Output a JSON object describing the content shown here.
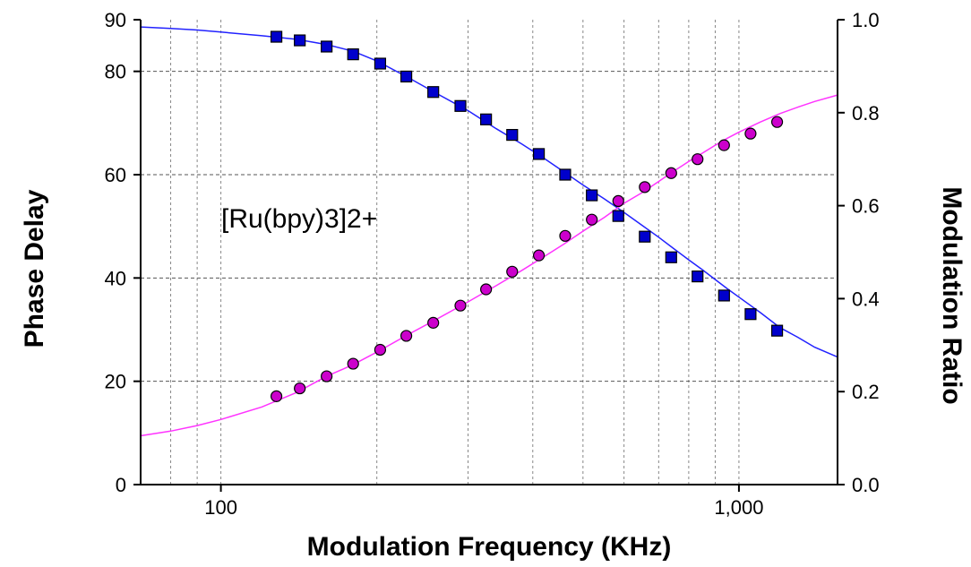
{
  "chart_data": {
    "type": "scatter",
    "xlabel": "Modulation Frequency (KHz)",
    "ylabel_left": "Phase Delay",
    "ylabel_right": "Modulation Ratio",
    "annotation": "[Ru(bpy)3]2+",
    "x_scale": "log",
    "xlim": [
      70,
      1550
    ],
    "ylim_left": [
      0,
      90
    ],
    "ylim_right": [
      0.0,
      1.0
    ],
    "x_ticks": [
      100,
      1000
    ],
    "x_tick_labels": [
      "100",
      "1,000"
    ],
    "x_minor_grid": [
      80,
      90,
      200,
      300,
      400,
      500,
      600,
      700,
      800,
      900
    ],
    "y_left_ticks": [
      0,
      20,
      40,
      60,
      80,
      90
    ],
    "y_left_tick_labels": [
      "0",
      "20",
      "40",
      "60",
      "80",
      "90"
    ],
    "y_right_ticks": [
      0.0,
      0.2,
      0.4,
      0.6,
      0.8,
      1.0
    ],
    "y_right_tick_labels": [
      "0.0",
      "0.2",
      "0.4",
      "0.6",
      "0.8",
      "1.0"
    ],
    "grid": true,
    "colors": {
      "phase": "#0000cc",
      "phase_line": "#2222ff",
      "modulation": "#cc00cc",
      "modulation_line": "#ff33ff"
    },
    "series": [
      {
        "axis": "left",
        "marker": "square",
        "x": [
          128,
          142,
          160,
          180,
          203,
          228,
          257,
          290,
          325,
          365,
          411,
          462,
          520,
          585,
          658,
          740,
          832,
          936,
          1053,
          1185
        ],
        "y": [
          86.7,
          86.0,
          84.8,
          83.3,
          81.5,
          79.0,
          76.0,
          73.3,
          70.7,
          67.7,
          64.0,
          60.0,
          56.0,
          52.0,
          48.0,
          44.0,
          40.3,
          36.6,
          33.0,
          29.8
        ]
      },
      {
        "axis": "right",
        "marker": "circle",
        "x": [
          128,
          142,
          160,
          180,
          203,
          228,
          257,
          290,
          325,
          365,
          411,
          462,
          520,
          585,
          658,
          740,
          832,
          936,
          1053,
          1185
        ],
        "y": [
          0.19,
          0.207,
          0.233,
          0.26,
          0.29,
          0.32,
          0.348,
          0.385,
          0.42,
          0.458,
          0.493,
          0.535,
          0.57,
          0.61,
          0.64,
          0.67,
          0.7,
          0.73,
          0.755,
          0.78
        ]
      }
    ],
    "fit_curves": [
      {
        "axis": "left",
        "x": [
          70,
          80,
          90,
          100,
          120,
          140,
          160,
          180,
          200,
          230,
          260,
          300,
          340,
          380,
          420,
          460,
          500,
          550,
          600,
          650,
          700,
          750,
          800,
          850,
          900,
          950,
          1000,
          1100,
          1200,
          1300,
          1400,
          1550
        ],
        "y": [
          88.6,
          88.3,
          88.0,
          87.6,
          86.9,
          86.2,
          85.2,
          83.9,
          82.0,
          78.8,
          75.8,
          72.4,
          68.9,
          66.0,
          63.2,
          60.5,
          58.0,
          55.3,
          52.7,
          50.2,
          47.9,
          45.6,
          43.5,
          41.6,
          39.7,
          37.9,
          36.3,
          33.3,
          30.4,
          28.5,
          26.6,
          24.7
        ]
      },
      {
        "axis": "right",
        "x": [
          70,
          80,
          90,
          100,
          120,
          140,
          160,
          180,
          200,
          230,
          260,
          300,
          340,
          380,
          420,
          460,
          500,
          550,
          600,
          650,
          700,
          750,
          800,
          850,
          900,
          950,
          1000,
          1100,
          1200,
          1300,
          1400,
          1550
        ],
        "y": [
          0.105,
          0.115,
          0.127,
          0.14,
          0.167,
          0.198,
          0.233,
          0.258,
          0.285,
          0.323,
          0.355,
          0.393,
          0.428,
          0.46,
          0.49,
          0.518,
          0.545,
          0.575,
          0.605,
          0.628,
          0.652,
          0.675,
          0.695,
          0.713,
          0.73,
          0.745,
          0.758,
          0.78,
          0.798,
          0.812,
          0.824,
          0.838
        ]
      }
    ]
  }
}
